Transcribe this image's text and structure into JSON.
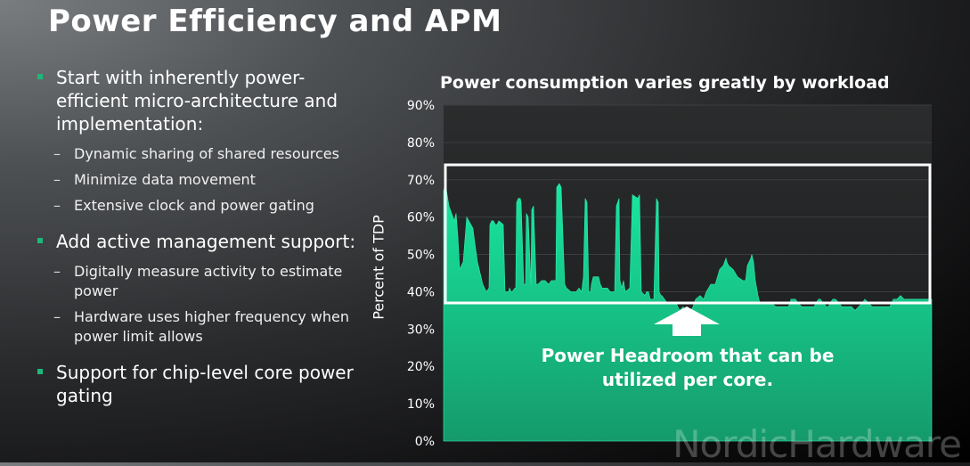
{
  "slide": {
    "title": "Power Efficiency and APM",
    "bullets": [
      {
        "text": "Start with inherently power-efficient micro-architecture and implementation:",
        "sub": [
          "Dynamic sharing of shared resources",
          "Minimize data movement",
          "Extensive clock and power gating"
        ]
      },
      {
        "text": "Add active management support:",
        "sub": [
          "Digitally measure activity to estimate power",
          "Hardware uses higher frequency when power limit allows"
        ]
      },
      {
        "text": "Support for chip-level core power gating",
        "sub": []
      }
    ],
    "watermark": "NordicHardware"
  },
  "chart_data": {
    "type": "area",
    "title": "Power consumption varies greatly by workload",
    "ylabel": "Percent of TDP",
    "xlabel": "",
    "ylim": [
      0,
      90
    ],
    "yticks": [
      "0%",
      "10%",
      "20%",
      "30%",
      "40%",
      "50%",
      "60%",
      "70%",
      "80%",
      "90%"
    ],
    "grid": true,
    "series": [
      {
        "x": [
          0,
          2,
          6,
          12,
          14,
          16,
          18,
          22,
          26,
          33,
          34,
          38,
          41,
          44,
          46,
          48,
          51,
          52,
          54,
          56,
          58,
          60,
          62,
          67,
          69,
          73,
          74,
          76,
          77,
          80,
          81,
          82,
          84,
          86,
          87,
          90,
          92,
          93,
          95,
          98,
          99,
          101,
          104,
          106,
          110,
          112,
          114,
          118,
          121,
          126,
          127,
          130,
          132,
          136,
          138,
          143,
          145,
          147,
          149,
          152,
          155,
          157,
          159,
          161,
          163,
          165,
          166,
          168,
          174,
          176,
          178,
          184,
          187,
          192,
          194,
          197,
          198,
          200,
          201,
          202,
          204,
          209,
          212,
          218,
          220,
          222,
          226,
          228,
          230,
          232,
          236,
          239,
          241,
          242,
          244,
          245,
          248,
          251,
          254,
          257,
          261,
          265,
          269,
          271,
          275,
          278,
          280,
          283,
          288,
          292,
          295,
          300,
          305,
          310,
          314,
          317,
          318,
          320,
          325,
          330,
          336,
          339,
          341,
          345,
          346,
          348,
          350,
          353,
          355,
          359,
          361,
          364,
          368,
          373,
          376,
          381,
          384,
          387,
          389,
          390,
          393,
          395,
          398,
          402,
          405,
          410,
          413,
          416,
          418,
          421,
          423,
          426,
          430,
          432,
          434,
          437,
          440,
          444,
          447,
          451,
          454,
          458,
          462,
          466,
          470,
          473,
          477,
          481,
          485,
          489,
          493,
          497,
          501,
          505,
          509,
          513,
          517,
          521,
          525,
          529,
          533,
          537,
          541,
          545,
          548
        ],
        "y": [
          67,
          69,
          63,
          59,
          61,
          55,
          46,
          48,
          60,
          57,
          55,
          48,
          45,
          42,
          41,
          40,
          41,
          58,
          59,
          59,
          58,
          58,
          59,
          58,
          40,
          40,
          41,
          40,
          40,
          41,
          41,
          64,
          65,
          65,
          64,
          42,
          42,
          61,
          60,
          42,
          62,
          63,
          42,
          42,
          43,
          43,
          43,
          42,
          43,
          43,
          68,
          69,
          68,
          42,
          41,
          40,
          40,
          40,
          40,
          41,
          40,
          44,
          65,
          64,
          40,
          40,
          42,
          44,
          44,
          42,
          41,
          41,
          40,
          40,
          63,
          65,
          43,
          41,
          42,
          43,
          40,
          41,
          66,
          65,
          66,
          40,
          39,
          40,
          40,
          38,
          38,
          65,
          64,
          40,
          39,
          39,
          38,
          37,
          37,
          37,
          37,
          35,
          36,
          34,
          33,
          35,
          36,
          38,
          39,
          38,
          40,
          42,
          42,
          46,
          47,
          49,
          48,
          47,
          46,
          44,
          43,
          43,
          47,
          49,
          50,
          48,
          43,
          39,
          37,
          37,
          37,
          37,
          37,
          36,
          36,
          36,
          36,
          36,
          37,
          38,
          38,
          38,
          37,
          36,
          36,
          36,
          36,
          36,
          37,
          38,
          38,
          37,
          36,
          36,
          37,
          38,
          38,
          37,
          36,
          36,
          36,
          36,
          35,
          36,
          37,
          38,
          37,
          36,
          36,
          36,
          36,
          36,
          36,
          38,
          38,
          39,
          38,
          38,
          38,
          38,
          38,
          38,
          38,
          38,
          38
        ]
      }
    ],
    "colors": {
      "fill": "#18e8a0",
      "fill_low": "#159a6b",
      "highlight_box": "#ffffff"
    },
    "annotations": [
      {
        "label": "Power Headroom that can be utilized per core.",
        "box_range_pct": [
          37,
          74
        ],
        "arrow": "up"
      }
    ]
  }
}
